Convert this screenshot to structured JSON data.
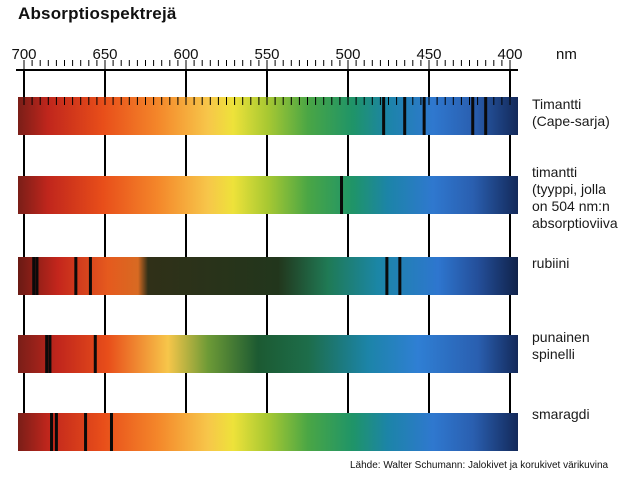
{
  "title": "Absorptiospektrejä",
  "scale": {
    "labels": [
      "700",
      "650",
      "600",
      "550",
      "500",
      "450",
      "400"
    ],
    "unit": "nm"
  },
  "spectra": [
    {
      "label_lines": [
        "Timantti",
        "(Cape-sarja)"
      ],
      "absorption_lines_nm": [
        478,
        465,
        453,
        423,
        415
      ]
    },
    {
      "label_lines": [
        "timantti",
        "(tyyppi, jolla",
        "on 504 nm:n",
        "absorptioviiva"
      ],
      "absorption_lines_nm": [
        504
      ]
    },
    {
      "label_lines": [
        "rubiini"
      ],
      "absorption_lines_nm": [
        694,
        692,
        668,
        659,
        476,
        468
      ]
    },
    {
      "label_lines": [
        "punainen",
        "spinelli"
      ],
      "absorption_lines_nm": [
        686,
        684,
        656
      ]
    },
    {
      "label_lines": [
        "smaragdi"
      ],
      "absorption_lines_nm": [
        683,
        680,
        662,
        646
      ]
    }
  ],
  "source": "Lähde: Walter Schumann: Jalokivet ja korukivet värikuvina"
}
